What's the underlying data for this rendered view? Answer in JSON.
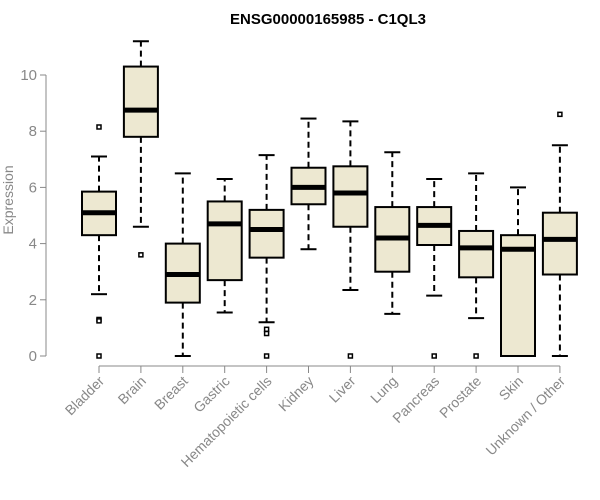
{
  "chart_data": {
    "type": "boxplot",
    "title": "ENSG00000165985 - C1QL3",
    "ylabel": "Expression",
    "xlabel": "",
    "ylim": [
      0,
      11.3
    ],
    "yticks": [
      0,
      2,
      4,
      6,
      8,
      10
    ],
    "categories": [
      "Bladder",
      "Brain",
      "Breast",
      "Gastric",
      "Hematopoietic cells",
      "Kidney",
      "Liver",
      "Lung",
      "Pancreas",
      "Prostate",
      "Skin",
      "Unknown / Other"
    ],
    "boxes": [
      {
        "category": "Bladder",
        "whisker_low": 2.2,
        "q1": 4.3,
        "median": 5.1,
        "q3": 5.85,
        "whisker_high": 7.1,
        "outliers": [
          8.15,
          1.3,
          1.25,
          0.0
        ]
      },
      {
        "category": "Brain",
        "whisker_low": 4.6,
        "q1": 7.8,
        "median": 8.75,
        "q3": 10.3,
        "whisker_high": 11.2,
        "outliers": [
          3.6
        ]
      },
      {
        "category": "Breast",
        "whisker_low": 0.0,
        "q1": 1.9,
        "median": 2.9,
        "q3": 4.0,
        "whisker_high": 6.5,
        "outliers": []
      },
      {
        "category": "Gastric",
        "whisker_low": 1.55,
        "q1": 2.7,
        "median": 4.7,
        "q3": 5.5,
        "whisker_high": 6.3,
        "outliers": []
      },
      {
        "category": "Hematopoietic cells",
        "whisker_low": 1.2,
        "q1": 3.5,
        "median": 4.5,
        "q3": 5.2,
        "whisker_high": 7.15,
        "outliers": [
          0.95,
          0.8,
          0.0
        ]
      },
      {
        "category": "Kidney",
        "whisker_low": 3.8,
        "q1": 5.4,
        "median": 6.0,
        "q3": 6.7,
        "whisker_high": 8.45,
        "outliers": []
      },
      {
        "category": "Liver",
        "whisker_low": 2.35,
        "q1": 4.6,
        "median": 5.8,
        "q3": 6.75,
        "whisker_high": 8.35,
        "outliers": [
          0.0
        ]
      },
      {
        "category": "Lung",
        "whisker_low": 1.5,
        "q1": 3.0,
        "median": 4.2,
        "q3": 5.3,
        "whisker_high": 7.25,
        "outliers": []
      },
      {
        "category": "Pancreas",
        "whisker_low": 2.15,
        "q1": 3.95,
        "median": 4.65,
        "q3": 5.3,
        "whisker_high": 6.3,
        "outliers": [
          0.0
        ]
      },
      {
        "category": "Prostate",
        "whisker_low": 1.35,
        "q1": 2.8,
        "median": 3.85,
        "q3": 4.45,
        "whisker_high": 6.5,
        "outliers": [
          0.0
        ]
      },
      {
        "category": "Skin",
        "whisker_low": 0.0,
        "q1": 0.0,
        "median": 3.8,
        "q3": 4.3,
        "whisker_high": 6.0,
        "outliers": []
      },
      {
        "category": "Unknown / Other",
        "whisker_low": 0.0,
        "q1": 2.9,
        "median": 4.15,
        "q3": 5.1,
        "whisker_high": 7.5,
        "outliers": [
          8.6
        ]
      }
    ],
    "grid": false,
    "legend": "none",
    "colors": {
      "box_fill": "#ede8d1",
      "stroke": "#000000",
      "tick_text": "#888888",
      "axis": "#888888"
    }
  }
}
